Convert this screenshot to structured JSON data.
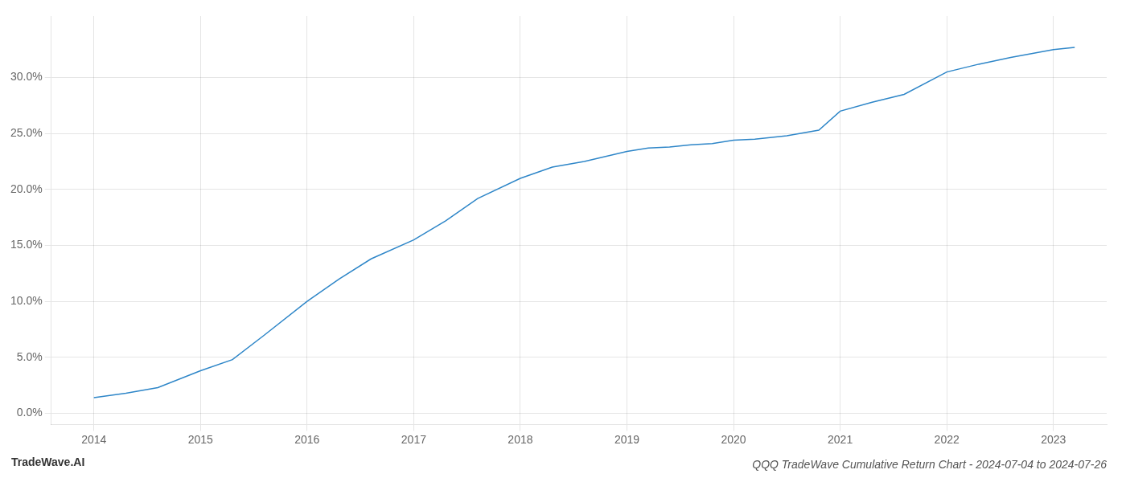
{
  "chart_data": {
    "type": "line",
    "title": "QQQ TradeWave Cumulative Return Chart - 2024-07-04 to 2024-07-26",
    "annotations": [
      "TradeWave.AI"
    ],
    "x": [
      2014.0,
      2014.3,
      2014.6,
      2015.0,
      2015.3,
      2015.6,
      2016.0,
      2016.3,
      2016.6,
      2017.0,
      2017.3,
      2017.6,
      2018.0,
      2018.3,
      2018.6,
      2019.0,
      2019.2,
      2019.4,
      2019.6,
      2019.8,
      2020.0,
      2020.2,
      2020.5,
      2020.8,
      2021.0,
      2021.3,
      2021.6,
      2022.0,
      2022.3,
      2022.6,
      2023.0,
      2023.2
    ],
    "values": [
      1.4,
      1.8,
      2.3,
      3.8,
      4.8,
      7.0,
      10.0,
      12.0,
      13.8,
      15.5,
      17.2,
      19.2,
      21.0,
      22.0,
      22.5,
      23.4,
      23.7,
      23.8,
      24.0,
      24.1,
      24.4,
      24.5,
      24.8,
      25.3,
      27.0,
      27.8,
      28.5,
      30.5,
      31.2,
      31.8,
      32.5,
      32.7
    ],
    "color": "#2e86c8",
    "xlim": [
      2013.6,
      2023.5
    ],
    "xticks": [
      2014,
      2015,
      2016,
      2017,
      2018,
      2019,
      2020,
      2021,
      2022,
      2023
    ],
    "ylim": [
      -1.0,
      35.5
    ],
    "yticks": [
      {
        "value": 0.0,
        "label": "0.0%"
      },
      {
        "value": 5.0,
        "label": "5.0%"
      },
      {
        "value": 10.0,
        "label": "10.0%"
      },
      {
        "value": 15.0,
        "label": "15.0%"
      },
      {
        "value": 20.0,
        "label": "20.0%"
      },
      {
        "value": 25.0,
        "label": "25.0%"
      },
      {
        "value": 30.0,
        "label": "30.0%"
      }
    ],
    "grid": true
  }
}
